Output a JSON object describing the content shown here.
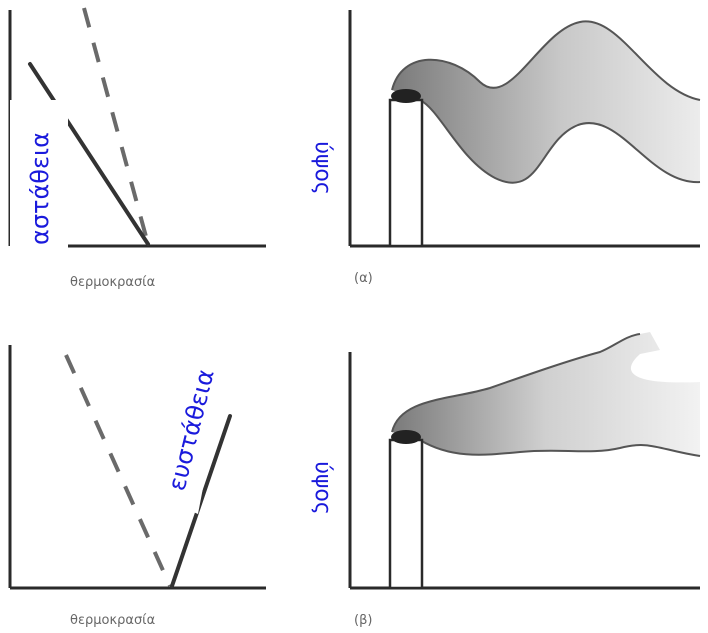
{
  "top_left": {
    "xlabel": "θερμοκρασία",
    "annotation": "αστάθεια"
  },
  "top_right": {
    "ylabel": "ύψος",
    "panel_label": "(α)"
  },
  "bottom_left": {
    "xlabel": "θερμοκρασία",
    "annotation": "ευστάθεια"
  },
  "bottom_right": {
    "ylabel": "ύψος",
    "panel_label": "(β)"
  },
  "colors": {
    "annotation_text": "#1a1adc",
    "axis": "#2a2a2a",
    "plume_dark": "#7a7a7a",
    "plume_light": "#ececec"
  }
}
